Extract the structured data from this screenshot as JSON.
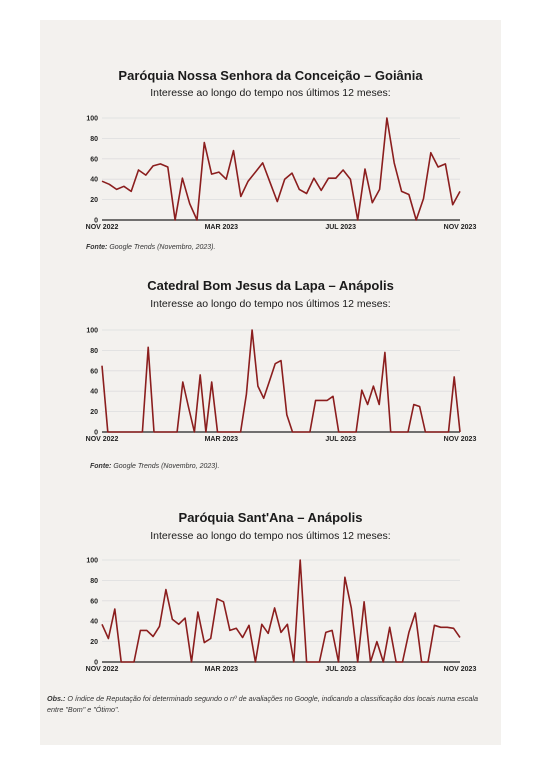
{
  "colors": {
    "line": "#8b1e1e",
    "grid": "#dddddd",
    "axis": "#222222",
    "background": "#f3f1ee"
  },
  "chart_data": [
    {
      "type": "line",
      "title": "Paróquia Nossa Senhora da Conceição – Goiânia",
      "subtitle": "Interesse ao longo do tempo nos últimos 12 meses:",
      "y_ticks": [
        0,
        20,
        40,
        60,
        80,
        100
      ],
      "ylim": [
        0,
        100
      ],
      "x_ticks": [
        "NOV 2022",
        "MAR 2023",
        "JUL 2023",
        "NOV 2023"
      ],
      "grid": true,
      "series": [
        {
          "values": [
            38,
            35,
            30,
            33,
            28,
            49,
            44,
            53,
            55,
            52,
            0,
            41,
            16,
            0,
            76,
            45,
            47,
            40,
            68,
            23,
            38,
            47,
            56,
            37,
            18,
            40,
            46,
            30,
            26,
            41,
            29,
            41,
            41,
            49,
            40,
            0,
            50,
            17,
            30,
            100,
            56,
            28,
            25,
            0,
            21,
            66,
            52,
            55,
            15,
            28
          ]
        }
      ]
    },
    {
      "type": "line",
      "title": "Catedral Bom Jesus da Lapa – Anápolis",
      "subtitle": "Interesse ao longo do tempo nos últimos 12 meses:",
      "y_ticks": [
        0,
        20,
        40,
        60,
        80,
        100
      ],
      "ylim": [
        0,
        100
      ],
      "x_ticks": [
        "NOV 2022",
        "MAR 2023",
        "JUL 2023",
        "NOV 2023"
      ],
      "grid": true,
      "series": [
        {
          "values": [
            65,
            0,
            0,
            0,
            0,
            0,
            0,
            0,
            83,
            0,
            0,
            0,
            0,
            0,
            49,
            24,
            0,
            56,
            0,
            49,
            0,
            0,
            0,
            0,
            0,
            37,
            100,
            45,
            33,
            50,
            67,
            70,
            17,
            0,
            0,
            0,
            0,
            31,
            31,
            31,
            35,
            0,
            0,
            0,
            0,
            41,
            27,
            45,
            27,
            78,
            0,
            0,
            0,
            0,
            27,
            25,
            0,
            0,
            0,
            0,
            0,
            54,
            0
          ]
        }
      ]
    },
    {
      "type": "line",
      "title": "Paróquia Sant'Ana – Anápolis",
      "subtitle": "Interesse ao longo do tempo nos últimos 12 meses:",
      "y_ticks": [
        0,
        20,
        40,
        60,
        80,
        100
      ],
      "ylim": [
        0,
        100
      ],
      "x_ticks": [
        "NOV 2022",
        "MAR 2023",
        "JUL 2023",
        "NOV 2023"
      ],
      "grid": true,
      "series": [
        {
          "values": [
            37,
            23,
            52,
            0,
            0,
            0,
            31,
            31,
            25,
            35,
            71,
            42,
            37,
            43,
            0,
            49,
            19,
            23,
            62,
            59,
            31,
            33,
            24,
            36,
            0,
            37,
            28,
            53,
            29,
            37,
            0,
            100,
            0,
            0,
            0,
            29,
            31,
            0,
            83,
            53,
            0,
            59,
            0,
            20,
            0,
            34,
            0,
            0,
            29,
            48,
            0,
            0,
            36,
            34,
            34,
            33,
            24
          ]
        }
      ]
    }
  ],
  "sources": [
    {
      "label": "Fonte:",
      "text": " Google Trends (Novembro, 2023)."
    },
    {
      "label": "Fonte:",
      "text": " Google Trends (Novembro, 2023)."
    }
  ],
  "note": {
    "label": "Obs.:",
    "text": " O índice de Reputação foi determinado segundo o nº de avaliações no Google, indicando a classificação dos locais numa escala entre \"Bom\" e \"Ótimo\"."
  }
}
